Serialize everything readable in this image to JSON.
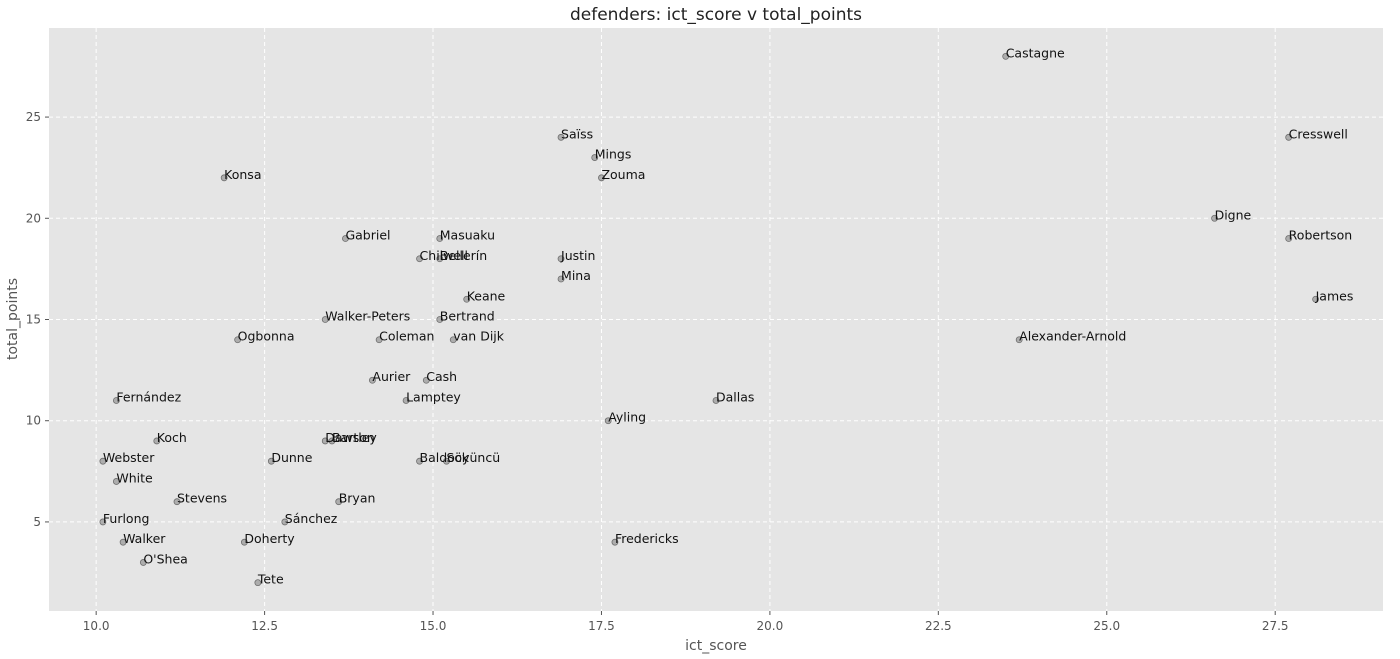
{
  "chart_data": {
    "type": "scatter",
    "title": "defenders: ict_score v total_points",
    "xlabel": "ict_score",
    "ylabel": "total_points",
    "xlim": [
      9.3,
      29.1
    ],
    "ylim": [
      0.6,
      29.4
    ],
    "xticks": [
      10.0,
      12.5,
      15.0,
      17.5,
      20.0,
      22.5,
      25.0,
      27.5
    ],
    "xtick_labels": [
      "10.0",
      "12.5",
      "15.0",
      "17.5",
      "20.0",
      "22.5",
      "25.0",
      "27.5"
    ],
    "yticks": [
      5,
      10,
      15,
      20,
      25
    ],
    "ytick_labels": [
      "5",
      "10",
      "15",
      "20",
      "25"
    ],
    "grid": true,
    "colors": {
      "background": "#e5e5e5",
      "grid": "#ffffff",
      "point": "#9a9a9a"
    },
    "points": [
      {
        "label": "Castagne",
        "x": 23.5,
        "y": 28
      },
      {
        "label": "Saïss",
        "x": 16.9,
        "y": 24
      },
      {
        "label": "Cresswell",
        "x": 27.7,
        "y": 24
      },
      {
        "label": "Mings",
        "x": 17.4,
        "y": 23
      },
      {
        "label": "Konsa",
        "x": 11.9,
        "y": 22
      },
      {
        "label": "Zouma",
        "x": 17.5,
        "y": 22
      },
      {
        "label": "Digne",
        "x": 26.6,
        "y": 20
      },
      {
        "label": "Gabriel",
        "x": 13.7,
        "y": 19
      },
      {
        "label": "Masuaku",
        "x": 15.1,
        "y": 19
      },
      {
        "label": "Robertson",
        "x": 27.7,
        "y": 19
      },
      {
        "label": "Chilwell",
        "x": 14.8,
        "y": 18
      },
      {
        "label": "Bellerín",
        "x": 15.1,
        "y": 18
      },
      {
        "label": "Justin",
        "x": 16.9,
        "y": 18
      },
      {
        "label": "Mina",
        "x": 16.9,
        "y": 17
      },
      {
        "label": "Keane",
        "x": 15.5,
        "y": 16
      },
      {
        "label": "James",
        "x": 28.1,
        "y": 16
      },
      {
        "label": "Walker-Peters",
        "x": 13.4,
        "y": 15
      },
      {
        "label": "Bertrand",
        "x": 15.1,
        "y": 15
      },
      {
        "label": "Ogbonna",
        "x": 12.1,
        "y": 14
      },
      {
        "label": "Coleman",
        "x": 14.2,
        "y": 14
      },
      {
        "label": "van Dijk",
        "x": 15.3,
        "y": 14
      },
      {
        "label": "Alexander-Arnold",
        "x": 23.7,
        "y": 14
      },
      {
        "label": "Aurier",
        "x": 14.1,
        "y": 12
      },
      {
        "label": "Cash",
        "x": 14.9,
        "y": 12
      },
      {
        "label": "Fernández",
        "x": 10.3,
        "y": 11
      },
      {
        "label": "Lamptey",
        "x": 14.6,
        "y": 11
      },
      {
        "label": "Dallas",
        "x": 19.2,
        "y": 11
      },
      {
        "label": "Ayling",
        "x": 17.6,
        "y": 10
      },
      {
        "label": "Koch",
        "x": 10.9,
        "y": 9
      },
      {
        "label": "Dawson",
        "x": 13.4,
        "y": 9
      },
      {
        "label": "Bartley",
        "x": 13.5,
        "y": 9
      },
      {
        "label": "Webster",
        "x": 10.1,
        "y": 8
      },
      {
        "label": "Dunne",
        "x": 12.6,
        "y": 8
      },
      {
        "label": "Baldock",
        "x": 14.8,
        "y": 8
      },
      {
        "label": "Söyüncü",
        "x": 15.2,
        "y": 8
      },
      {
        "label": "White",
        "x": 10.3,
        "y": 7
      },
      {
        "label": "Stevens",
        "x": 11.2,
        "y": 6
      },
      {
        "label": "Bryan",
        "x": 13.6,
        "y": 6
      },
      {
        "label": "Furlong",
        "x": 10.1,
        "y": 5
      },
      {
        "label": "Sánchez",
        "x": 12.8,
        "y": 5
      },
      {
        "label": "Walker",
        "x": 10.4,
        "y": 4
      },
      {
        "label": "Doherty",
        "x": 12.2,
        "y": 4
      },
      {
        "label": "Fredericks",
        "x": 17.7,
        "y": 4
      },
      {
        "label": "O'Shea",
        "x": 10.7,
        "y": 3
      },
      {
        "label": "Tete",
        "x": 12.4,
        "y": 2
      }
    ]
  }
}
